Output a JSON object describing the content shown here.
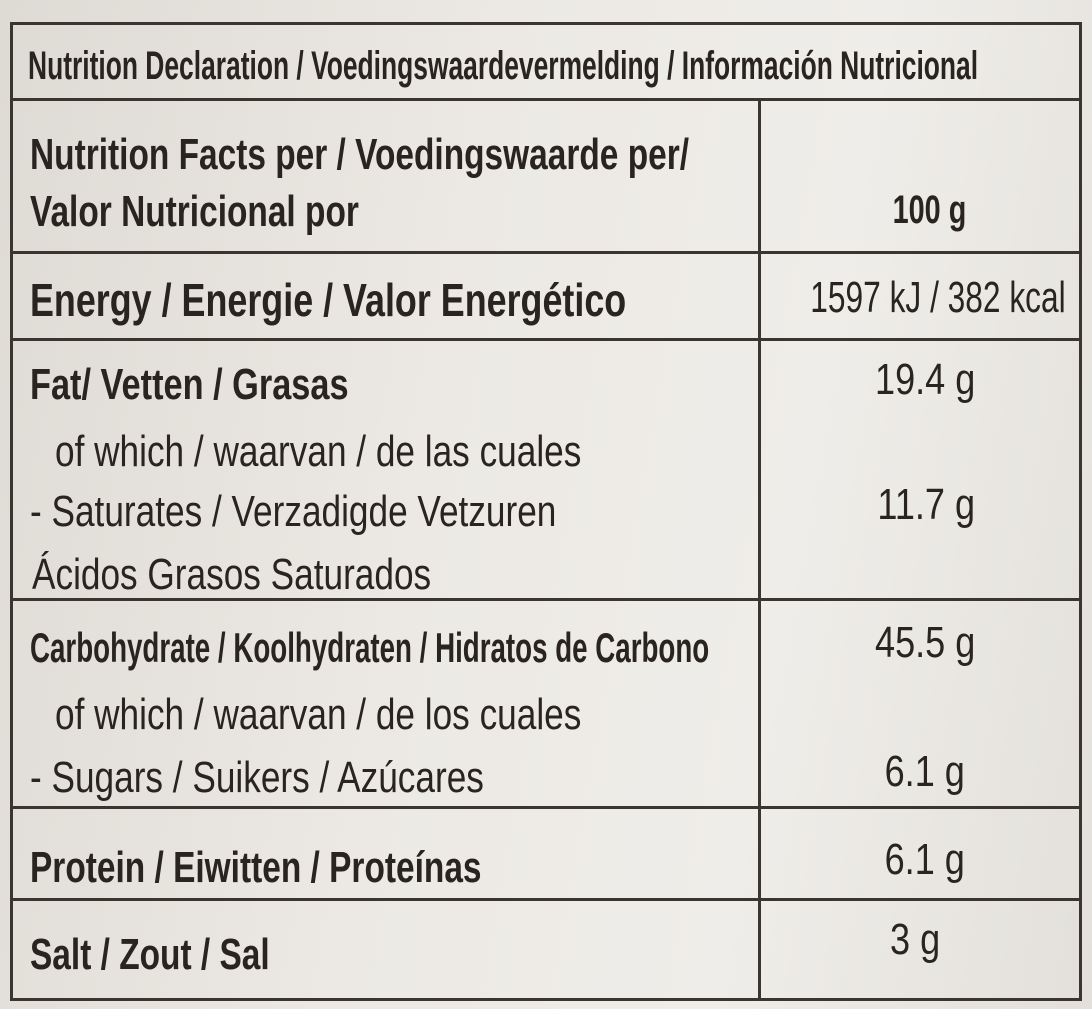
{
  "title": "Nutrition Declaration / Voedingswaardevermelding / Información Nutricional",
  "table": {
    "column_header": {
      "label": [
        "Nutrition Facts per / Voedingswaarde per/",
        "Valor Nutricional por"
      ],
      "value": "100 g"
    },
    "rows": [
      {
        "label": [
          "Energy / Energie / Valor Energético"
        ],
        "values": [
          "1597 kJ / 382 kcal"
        ]
      },
      {
        "label": [
          "Fat/ Vetten / Grasas",
          "of which / waarvan / de las cuales",
          "- Saturates / Verzadigde Vetzuren",
          "Ácidos Grasos Saturados"
        ],
        "values": [
          "19.4 g",
          "11.7 g"
        ]
      },
      {
        "label": [
          "Carbohydrate / Koolhydraten / Hidratos de Carbono",
          "of which / waarvan / de los cuales",
          "- Sugars / Suikers / Azúcares"
        ],
        "values": [
          "45.5 g",
          "6.1 g"
        ]
      },
      {
        "label": [
          "Protein / Eiwitten / Proteínas"
        ],
        "values": [
          "6.1 g"
        ]
      },
      {
        "label": [
          "Salt / Zout / Sal"
        ],
        "values": [
          "3 g"
        ]
      }
    ]
  }
}
